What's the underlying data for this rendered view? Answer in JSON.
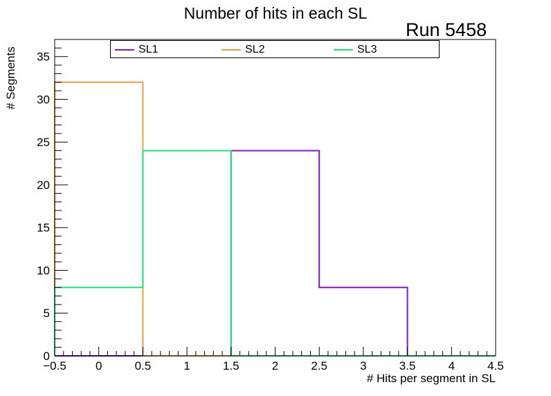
{
  "chart_data": {
    "type": "histogram-step",
    "title": "Number of hits in each SL",
    "annotation": "Run 5458",
    "xlabel": "# Hits per segment in SL",
    "ylabel": "# Segments",
    "xlim": [
      -0.5,
      4.5
    ],
    "ylim": [
      0,
      37
    ],
    "bin_edges": [
      -0.5,
      0.5,
      1.5,
      2.5,
      3.5,
      4.5
    ],
    "x_ticks": [
      -0.5,
      0,
      0.5,
      1,
      1.5,
      2,
      2.5,
      3,
      3.5,
      4,
      4.5
    ],
    "x_tick_labels": [
      "−0.5",
      "0",
      "0.5",
      "1",
      "1.5",
      "2",
      "2.5",
      "3",
      "3.5",
      "4",
      "4.5"
    ],
    "y_ticks": [
      0,
      5,
      10,
      15,
      20,
      25,
      30,
      35
    ],
    "y_tick_labels": [
      "0",
      "5",
      "10",
      "15",
      "20",
      "25",
      "30",
      "35"
    ],
    "legend_position": "top",
    "series": [
      {
        "name": "SL1",
        "color": "#8a10d8",
        "values": [
          0,
          0,
          24,
          8,
          0
        ]
      },
      {
        "name": "SL2",
        "color": "#f39a3c",
        "values": [
          32,
          0,
          0,
          0,
          0
        ]
      },
      {
        "name": "SL3",
        "color": "#17e87a",
        "values": [
          8,
          24,
          0,
          0,
          0
        ]
      }
    ]
  }
}
